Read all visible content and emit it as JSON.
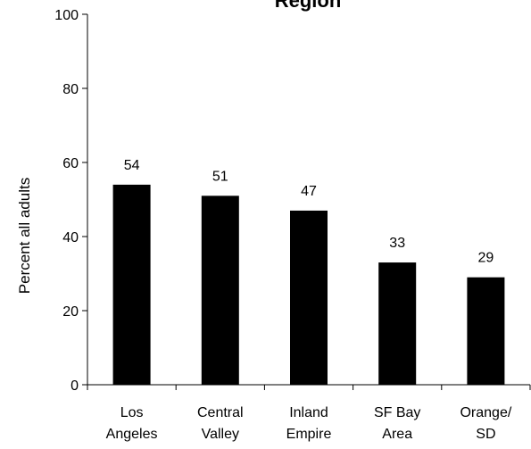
{
  "chart_data": {
    "type": "bar",
    "title": "Region",
    "ylabel": "Percent all adults",
    "xlabel": "",
    "categories": [
      [
        "Los",
        "Angeles"
      ],
      [
        "Central",
        "Valley"
      ],
      [
        "Inland",
        "Empire"
      ],
      [
        "SF Bay",
        "Area"
      ],
      [
        "Orange/",
        "SD"
      ]
    ],
    "values": [
      54,
      51,
      47,
      33,
      29
    ],
    "data_labels": [
      "54",
      "51",
      "47",
      "33",
      "29"
    ],
    "ylim": [
      0,
      100
    ],
    "yticks": [
      0,
      20,
      40,
      60,
      80,
      100
    ],
    "grid": false,
    "legend": "none",
    "bar_color": "#000000"
  }
}
